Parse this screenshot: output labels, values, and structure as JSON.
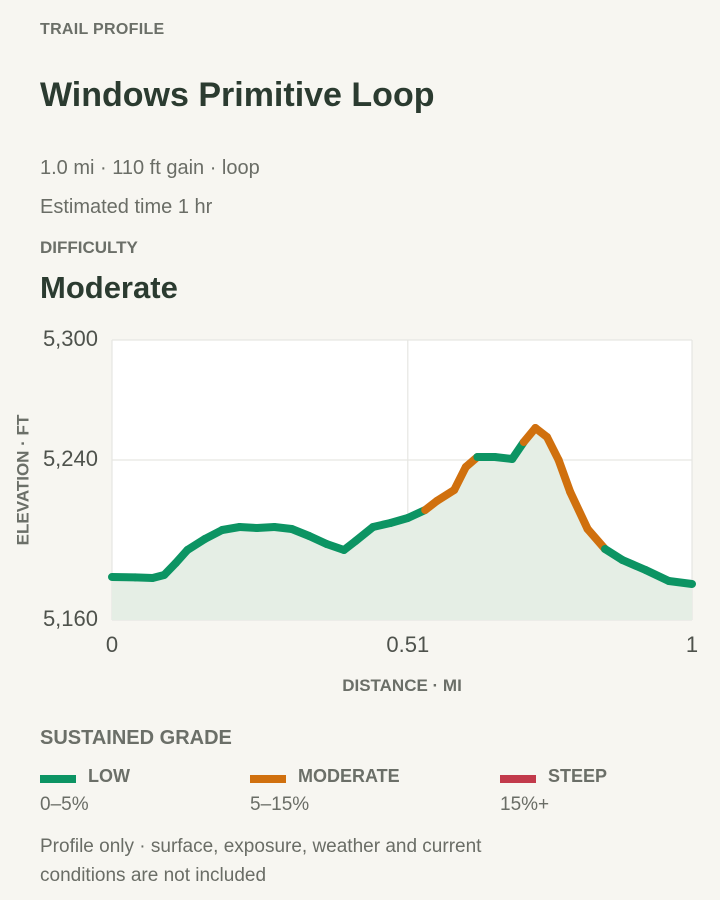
{
  "header": {
    "eyebrow": "TRAIL PROFILE",
    "title": "Windows Primitive Loop",
    "stats": "1.0 mi · 110 ft gain · loop",
    "estimate": "Estimated time 1 hr",
    "difficulty_label": "DIFFICULTY",
    "difficulty_value": "Moderate"
  },
  "chart_data": {
    "type": "line",
    "xlabel": "DISTANCE · MI",
    "ylabel": "ELEVATION · FT",
    "xlim": [
      0,
      1
    ],
    "ylim": [
      5160,
      5300
    ],
    "x_ticks": [
      {
        "value": 0,
        "label": "0"
      },
      {
        "value": 0.51,
        "label": "0.51"
      },
      {
        "value": 1,
        "label": "1"
      }
    ],
    "y_ticks": [
      {
        "value": 5300,
        "label": "5,300"
      },
      {
        "value": 5240,
        "label": "5,240"
      },
      {
        "value": 5160,
        "label": "5,160"
      }
    ],
    "grid": true,
    "colors": {
      "low": "#0c9463",
      "moderate": "#d0700e",
      "steep": "#c23a4b",
      "fill": "#e5eee5",
      "grid": "#e6e6e2"
    },
    "points": [
      {
        "x": 0.0,
        "y": 5181.5,
        "grade": "low"
      },
      {
        "x": 0.04,
        "y": 5181.3,
        "grade": "low"
      },
      {
        "x": 0.07,
        "y": 5181.0,
        "grade": "low"
      },
      {
        "x": 0.09,
        "y": 5182.5,
        "grade": "low"
      },
      {
        "x": 0.11,
        "y": 5188.5,
        "grade": "low"
      },
      {
        "x": 0.13,
        "y": 5195.0,
        "grade": "low"
      },
      {
        "x": 0.16,
        "y": 5200.5,
        "grade": "low"
      },
      {
        "x": 0.19,
        "y": 5205.0,
        "grade": "low"
      },
      {
        "x": 0.22,
        "y": 5206.5,
        "grade": "low"
      },
      {
        "x": 0.25,
        "y": 5206.0,
        "grade": "low"
      },
      {
        "x": 0.28,
        "y": 5206.5,
        "grade": "low"
      },
      {
        "x": 0.31,
        "y": 5205.5,
        "grade": "low"
      },
      {
        "x": 0.34,
        "y": 5202.0,
        "grade": "low"
      },
      {
        "x": 0.37,
        "y": 5198.0,
        "grade": "low"
      },
      {
        "x": 0.4,
        "y": 5195.0,
        "grade": "low"
      },
      {
        "x": 0.42,
        "y": 5199.5,
        "grade": "low"
      },
      {
        "x": 0.45,
        "y": 5206.5,
        "grade": "low"
      },
      {
        "x": 0.48,
        "y": 5208.5,
        "grade": "low"
      },
      {
        "x": 0.51,
        "y": 5211.0,
        "grade": "low"
      },
      {
        "x": 0.54,
        "y": 5215.0,
        "grade": "low"
      },
      {
        "x": 0.56,
        "y": 5219.5,
        "grade": "moderate"
      },
      {
        "x": 0.59,
        "y": 5225.0,
        "grade": "moderate"
      },
      {
        "x": 0.61,
        "y": 5236.5,
        "grade": "moderate"
      },
      {
        "x": 0.63,
        "y": 5241.5,
        "grade": "moderate"
      },
      {
        "x": 0.66,
        "y": 5241.5,
        "grade": "low"
      },
      {
        "x": 0.69,
        "y": 5240.5,
        "grade": "low"
      },
      {
        "x": 0.71,
        "y": 5249.0,
        "grade": "low"
      },
      {
        "x": 0.73,
        "y": 5256.0,
        "grade": "moderate"
      },
      {
        "x": 0.75,
        "y": 5251.5,
        "grade": "moderate"
      },
      {
        "x": 0.77,
        "y": 5240.0,
        "grade": "moderate"
      },
      {
        "x": 0.79,
        "y": 5224.0,
        "grade": "moderate"
      },
      {
        "x": 0.82,
        "y": 5205.5,
        "grade": "moderate"
      },
      {
        "x": 0.85,
        "y": 5195.5,
        "grade": "moderate"
      },
      {
        "x": 0.88,
        "y": 5190.0,
        "grade": "low"
      },
      {
        "x": 0.92,
        "y": 5185.0,
        "grade": "low"
      },
      {
        "x": 0.96,
        "y": 5179.5,
        "grade": "low"
      },
      {
        "x": 1.0,
        "y": 5178.0,
        "grade": "low"
      }
    ]
  },
  "legend": {
    "title": "SUSTAINED GRADE",
    "items": [
      {
        "name": "LOW",
        "range": "0–5%",
        "color": "#0c9463"
      },
      {
        "name": "MODERATE",
        "range": "5–15%",
        "color": "#d0700e"
      },
      {
        "name": "STEEP",
        "range": "15%+",
        "color": "#c23a4b"
      }
    ]
  },
  "footnote": "Profile only · surface, exposure, weather and current conditions are not included"
}
